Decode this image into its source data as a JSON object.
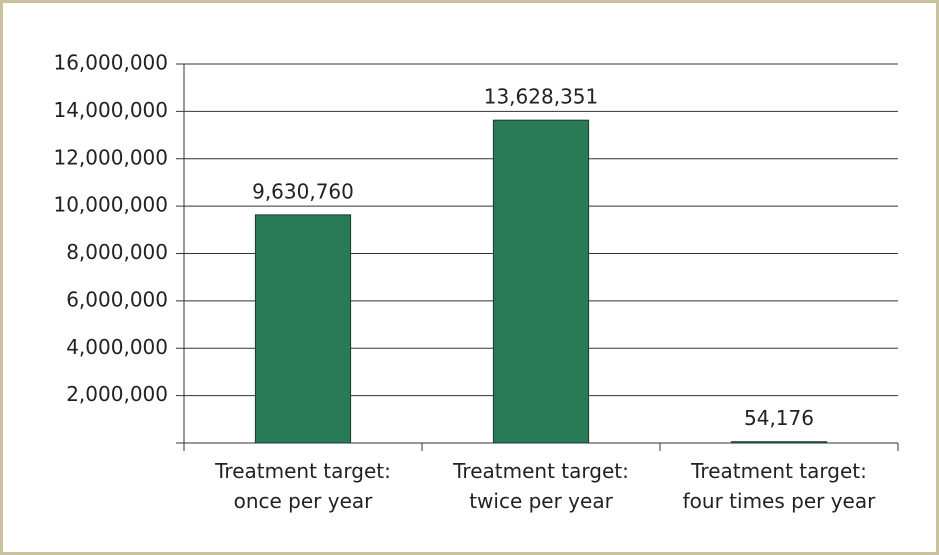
{
  "chart_data": {
    "type": "bar",
    "categories": [
      "Treatment target:\nonce per year",
      "Treatment target:\ntwice per year",
      "Treatment target:\nfour times per year"
    ],
    "values": [
      9630760,
      13628351,
      54176
    ],
    "value_labels": [
      "9,630,760",
      "13,628,351",
      "54,176"
    ],
    "color": "#287b56",
    "ylim": [
      0,
      16000000
    ],
    "yticks": [
      {
        "value": 2000000,
        "label": "2,000,000"
      },
      {
        "value": 4000000,
        "label": "4,000,000"
      },
      {
        "value": 6000000,
        "label": "6,000,000"
      },
      {
        "value": 8000000,
        "label": "8,000,000"
      },
      {
        "value": 10000000,
        "label": "10,000,000"
      },
      {
        "value": 12000000,
        "label": "12,000,000"
      },
      {
        "value": 14000000,
        "label": "14,000,000"
      },
      {
        "value": 16000000,
        "label": "16,000,000"
      }
    ],
    "grid": true
  }
}
